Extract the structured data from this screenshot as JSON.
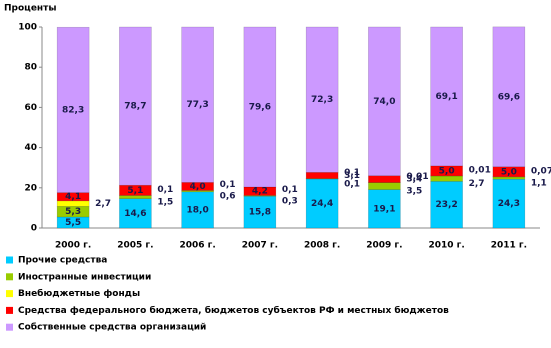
{
  "chart_data": {
    "type": "stacked_bar",
    "y_label": "Проценты",
    "categories": [
      "2000 г.",
      "2005 г.",
      "2006 г.",
      "2007 г.",
      "2008 г.",
      "2009 г.",
      "2010 г.",
      "2011 г."
    ],
    "series": [
      {
        "name": "Прочие  средства",
        "color": "#00ccff",
        "values": [
          5.5,
          14.6,
          18.0,
          15.8,
          24.4,
          19.1,
          23.2,
          24.3
        ],
        "value_labels": [
          "5,5",
          "14,6",
          "18,0",
          "15,8",
          "24,4",
          "19,1",
          "23,2",
          "24,3"
        ]
      },
      {
        "name": "Иностранные инвестиции",
        "color": "#99cc00",
        "values": [
          5.3,
          1.5,
          0.6,
          0.3,
          0.1,
          3.5,
          2.7,
          1.1
        ],
        "value_labels": [
          "5,3",
          "1,5",
          "0,6",
          "0,3",
          "0,1",
          "3,5",
          "2,7",
          "1,1"
        ]
      },
      {
        "name": "Внебюджетные фонды",
        "color": "#ffff00",
        "values": [
          2.7,
          0.1,
          0.1,
          0.1,
          0.1,
          0.01,
          0.01,
          0.07
        ],
        "value_labels": [
          "2,7",
          "0,1",
          "0,1",
          "0,1",
          "0,1",
          "0,01",
          "0,01",
          "0,07"
        ]
      },
      {
        "name": "Средства федерального бюджета, бюджетов субъектов РФ и местных бюджетов",
        "color": "#ff0000",
        "values": [
          4.1,
          5.1,
          4.0,
          4.2,
          3.1,
          3.4,
          5.0,
          5.0
        ],
        "value_labels": [
          "4,1",
          "5,1",
          "4,0",
          "4,2",
          "3,1",
          "3,4",
          "5,0",
          "5,0"
        ]
      },
      {
        "name": "Собственные средства организаций",
        "color": "#cc99ff",
        "values": [
          82.3,
          78.7,
          77.3,
          79.6,
          72.3,
          74.0,
          69.1,
          69.6
        ],
        "value_labels": [
          "82,3",
          "78,7",
          "77,3",
          "79,6",
          "72,3",
          "74,0",
          "69,1",
          "69,6"
        ]
      }
    ],
    "ylim": [
      0,
      100
    ],
    "yticks": [
      0,
      20,
      40,
      60,
      80,
      100
    ],
    "legend": "bottom-left"
  }
}
